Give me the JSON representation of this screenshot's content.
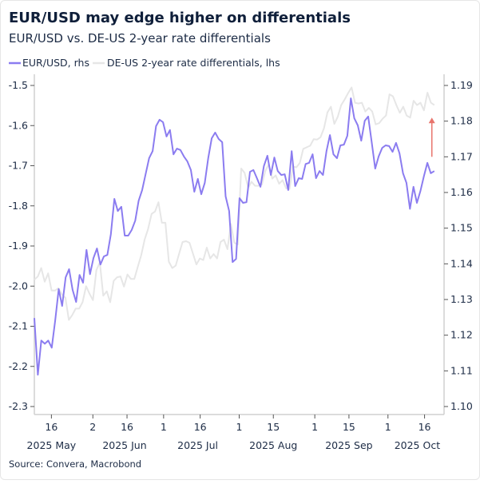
{
  "chart_data": {
    "type": "line",
    "title": "EUR/USD may edge higher on differentials",
    "subtitle": "EUR/USD vs. DE-US 2-year rate differentials",
    "source": "Source: Convera, Macrobond",
    "xlim": [
      "2025-05-09",
      "2025-10-24"
    ],
    "left_axis": {
      "ylim": [
        -2.3,
        -1.5
      ],
      "ticks": [
        "-1.5",
        "-1.6",
        "-1.7",
        "-1.8",
        "-1.9",
        "-2.0",
        "-2.1",
        "-2.2",
        "-2.3"
      ]
    },
    "right_axis": {
      "ylim": [
        1.1,
        1.19
      ],
      "ticks": [
        "1.19",
        "1.18",
        "1.17",
        "1.16",
        "1.15",
        "1.14",
        "1.13",
        "1.12",
        "1.11",
        "1.10"
      ]
    },
    "x_ticks": [
      {
        "date": "2025-05-16",
        "label": "16"
      },
      {
        "date": "2025-06-02",
        "label": "2"
      },
      {
        "date": "2025-06-16",
        "label": "16"
      },
      {
        "date": "2025-07-01",
        "label": "1"
      },
      {
        "date": "2025-07-16",
        "label": "16"
      },
      {
        "date": "2025-08-01",
        "label": "1"
      },
      {
        "date": "2025-08-15",
        "label": "15"
      },
      {
        "date": "2025-09-01",
        "label": "1"
      },
      {
        "date": "2025-09-15",
        "label": "15"
      },
      {
        "date": "2025-10-01",
        "label": "1"
      },
      {
        "date": "2025-10-16",
        "label": "16"
      }
    ],
    "x_month_labels": [
      {
        "date": "2025-05-16",
        "label": "2025 May"
      },
      {
        "date": "2025-06-15",
        "label": "2025 Jun"
      },
      {
        "date": "2025-07-15",
        "label": "2025 Jul"
      },
      {
        "date": "2025-08-15",
        "label": "2025 Aug"
      },
      {
        "date": "2025-09-15",
        "label": "2025 Sep"
      },
      {
        "date": "2025-10-13",
        "label": "2025 Oct"
      }
    ],
    "grid": false,
    "legend_position": "top-left",
    "series": [
      {
        "name": "EUR/USD, rhs",
        "axis": "right",
        "color": "#8b7cf0",
        "date_range": [
          "2025-05-09",
          "2025-10-20"
        ],
        "frequency": "business daily",
        "values": [
          1.1248,
          1.1089,
          1.1185,
          1.1176,
          1.1185,
          1.1165,
          1.1241,
          1.1329,
          1.1282,
          1.1362,
          1.1385,
          1.1327,
          1.1293,
          1.1369,
          1.1347,
          1.1439,
          1.1371,
          1.1416,
          1.1443,
          1.1398,
          1.1421,
          1.1425,
          1.1483,
          1.1582,
          1.1548,
          1.156,
          1.1479,
          1.1479,
          1.1495,
          1.1521,
          1.1577,
          1.1607,
          1.1651,
          1.1696,
          1.1716,
          1.1786,
          1.1804,
          1.1797,
          1.1757,
          1.1775,
          1.1707,
          1.1723,
          1.1719,
          1.1701,
          1.1687,
          1.1663,
          1.1602,
          1.1638,
          1.1595,
          1.1627,
          1.1696,
          1.1752,
          1.1768,
          1.175,
          1.1741,
          1.1589,
          1.1548,
          1.1405,
          1.1414,
          1.1584,
          1.1571,
          1.1573,
          1.1658,
          1.1663,
          1.164,
          1.1616,
          1.1674,
          1.1703,
          1.1649,
          1.1698,
          1.166,
          1.1649,
          1.1651,
          1.1607,
          1.1716,
          1.1618,
          1.164,
          1.1638,
          1.168,
          1.1683,
          1.1707,
          1.164,
          1.166,
          1.1649,
          1.1716,
          1.1761,
          1.1707,
          1.1696,
          1.1732,
          1.1734,
          1.1759,
          1.1864,
          1.1808,
          1.1788,
          1.1745,
          1.1801,
          1.1813,
          1.1741,
          1.1667,
          1.1701,
          1.1725,
          1.1732,
          1.173,
          1.1714,
          1.1739,
          1.171,
          1.1654,
          1.1627,
          1.1554,
          1.1616,
          1.1571,
          1.1604,
          1.1645,
          1.1683,
          1.1654,
          1.166
        ]
      },
      {
        "name": "DE-US 2-year rate differentials, lhs",
        "axis": "left",
        "color": "#e6e6e6",
        "date_range": [
          "2025-05-09",
          "2025-10-20"
        ],
        "frequency": "business daily",
        "values": [
          -1.984,
          -1.976,
          -1.955,
          -1.989,
          -1.968,
          -2.011,
          -2.011,
          -2.005,
          -2.021,
          -2.029,
          -2.084,
          -2.072,
          -2.056,
          -2.056,
          -2.04,
          -2.0,
          -2.019,
          -2.035,
          -1.96,
          -1.941,
          -2.024,
          -2.013,
          -2.04,
          -1.987,
          -1.978,
          -1.976,
          -2.001,
          -1.971,
          -1.982,
          -1.982,
          -1.952,
          -1.923,
          -1.884,
          -1.857,
          -1.82,
          -1.814,
          -1.791,
          -1.842,
          -1.842,
          -1.939,
          -1.955,
          -1.949,
          -1.919,
          -1.89,
          -1.888,
          -1.892,
          -1.919,
          -1.946,
          -1.931,
          -1.935,
          -1.904,
          -1.931,
          -1.92,
          -1.931,
          -1.89,
          -1.884,
          -1.908,
          -1.845,
          -1.892,
          -1.896,
          -1.707,
          -1.718,
          -1.755,
          -1.74,
          -1.75,
          -1.75,
          -1.747,
          -1.713,
          -1.696,
          -1.732,
          -1.724,
          -1.745,
          -1.736,
          -1.756,
          -1.758,
          -1.702,
          -1.704,
          -1.693,
          -1.658,
          -1.654,
          -1.65,
          -1.634,
          -1.635,
          -1.629,
          -1.607,
          -1.567,
          -1.553,
          -1.596,
          -1.578,
          -1.549,
          -1.535,
          -1.519,
          -1.505,
          -1.543,
          -1.545,
          -1.543,
          -1.565,
          -1.556,
          -1.565,
          -1.597,
          -1.594,
          -1.583,
          -1.575,
          -1.522,
          -1.527,
          -1.549,
          -1.568,
          -1.553,
          -1.575,
          -1.58,
          -1.538,
          -1.549,
          -1.543,
          -1.562,
          -1.518,
          -1.543,
          -1.549
        ]
      }
    ],
    "annotations": [
      {
        "type": "arrow",
        "axis": "right",
        "date": "2025-10-19",
        "from": 1.17,
        "to": 1.181,
        "color": "#e8746c"
      }
    ]
  }
}
